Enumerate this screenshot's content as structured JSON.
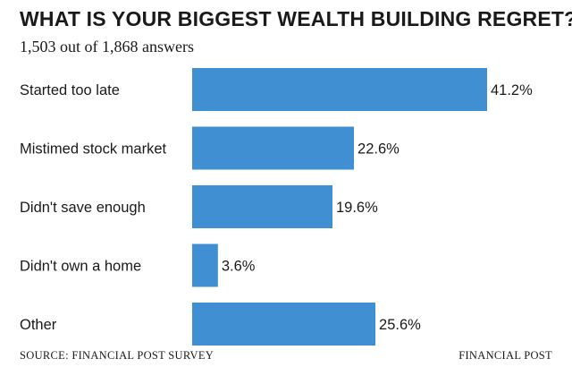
{
  "chart_data": {
    "type": "bar",
    "orientation": "horizontal",
    "title": "WHAT IS YOUR BIGGEST WEALTH BUILDING REGRET?",
    "subtitle": "1,503 out of 1,868 answers",
    "categories": [
      "Started too late",
      "Mistimed stock market",
      "Didn't save enough",
      "Didn't own a home",
      "Other"
    ],
    "values": [
      41.2,
      22.6,
      19.6,
      3.6,
      25.6
    ],
    "value_labels": [
      "41.2%",
      "22.6%",
      "19.6%",
      "3.6%",
      "25.6%"
    ],
    "unit": "%",
    "xlim": [
      0,
      41.2
    ],
    "grid": false,
    "legend": "none",
    "bar_color": "#3f8fd2"
  },
  "footer": {
    "source": "SOURCE: FINANCIAL POST SURVEY",
    "credit": "FINANCIAL POST"
  }
}
